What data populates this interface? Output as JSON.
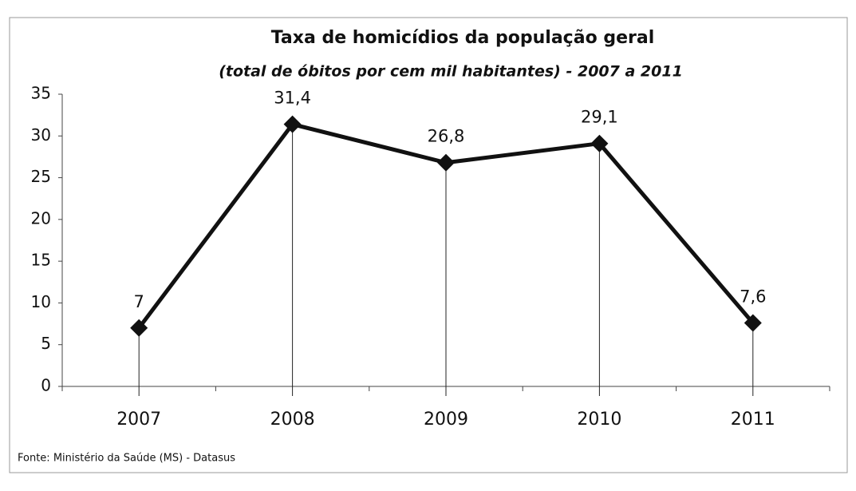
{
  "chart_data": {
    "type": "line",
    "title": "Taxa de homicídios da população geral",
    "subtitle": "(total de óbitos por cem mil habitantes) - 2007 a 2011",
    "source": "Fonte: Ministério da Saúde (MS) - Datasus",
    "categories": [
      "2007",
      "2008",
      "2009",
      "2010",
      "2011"
    ],
    "values": [
      7,
      31.4,
      26.8,
      29.1,
      7.6
    ],
    "value_labels": [
      "7",
      "31,4",
      "26,8",
      "29,1",
      "7,6"
    ],
    "color": "#111111",
    "ylim": [
      0,
      35
    ],
    "yticks": [
      0,
      5,
      10,
      15,
      20,
      25,
      30,
      35
    ],
    "grid": false
  }
}
